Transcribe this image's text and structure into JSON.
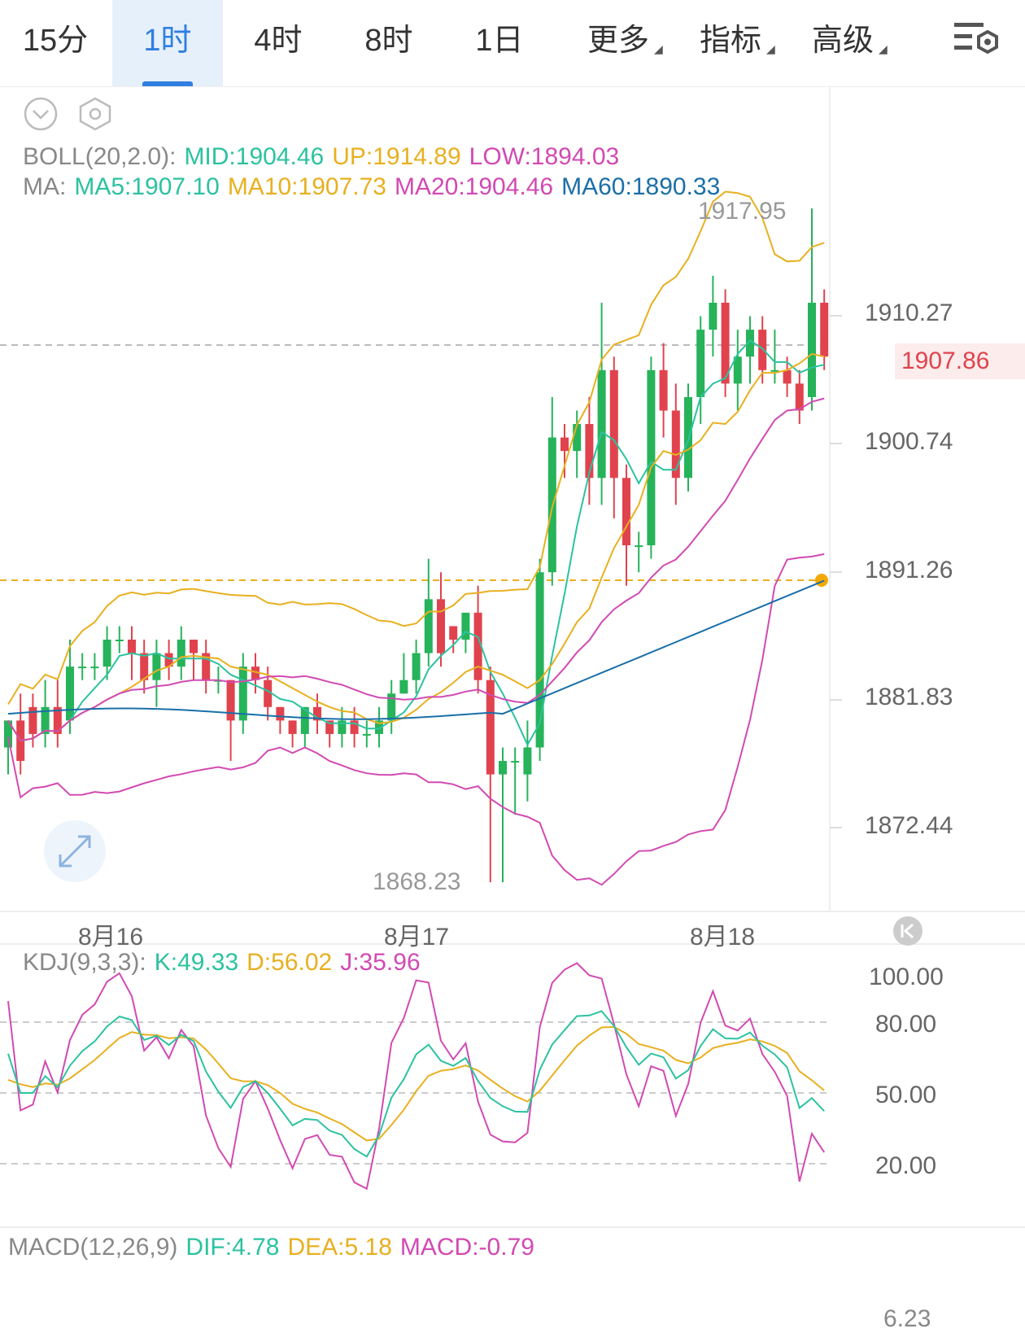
{
  "tabs": [
    {
      "label": "15分",
      "active": false
    },
    {
      "label": "1时",
      "active": true
    },
    {
      "label": "4时",
      "active": false
    },
    {
      "label": "8时",
      "active": false
    },
    {
      "label": "1日",
      "active": false
    },
    {
      "label": "更多",
      "active": false,
      "dropdown": true
    },
    {
      "label": "指标",
      "active": false,
      "dropdown": true
    },
    {
      "label": "高级",
      "active": false,
      "dropdown": true
    }
  ],
  "toolbar": {
    "settings_icon": "chart-settings-icon",
    "collapse_icon": "chevron-down-circle-icon",
    "hex_icon": "hexagon-settings-icon",
    "expand_icon": "expand-arrows-icon",
    "back_icon": "skip-to-start-icon"
  },
  "colors": {
    "up": "#26b35a",
    "down": "#e0434d",
    "mid": "#2cc2a0",
    "upper": "#e8b020",
    "lower": "#d24ab2",
    "ma60": "#1a6fa8",
    "accent": "#2f7fe0"
  },
  "boll": {
    "prefix": "BOLL(20,2.0):",
    "mid": "MID:1904.46",
    "up": "UP:1914.89",
    "low": "LOW:1894.03"
  },
  "ma": {
    "prefix": "MA:",
    "ma5": "MA5:1907.10",
    "ma10": "MA10:1907.73",
    "ma20": "MA20:1904.46",
    "ma60": "MA60:1890.33"
  },
  "price_axis": [
    "1910.27",
    "1900.74",
    "1891.26",
    "1881.83",
    "1872.44"
  ],
  "current_price": "1907.86",
  "high_label": "1917.95",
  "low_label": "1868.23",
  "dates": [
    "8月16",
    "8月17",
    "8月18"
  ],
  "kdj": {
    "prefix": "KDJ(9,3,3):",
    "k": "K:49.33",
    "d": "D:56.02",
    "j": "J:35.96",
    "axis": [
      "100.00",
      "80.00",
      "50.00",
      "20.00"
    ]
  },
  "macd": {
    "prefix": "MACD(12,26,9)",
    "dif": "DIF:4.78",
    "dea": "DEA:5.18",
    "macd": "MACD:-0.79",
    "axis_top": "6.23"
  },
  "chart_data": {
    "type": "candlestick",
    "price_range": [
      1866,
      1920
    ],
    "candles": [
      [
        1878,
        1880,
        1880,
        1876
      ],
      [
        1880,
        1877,
        1882,
        1876
      ],
      [
        1881,
        1879,
        1882,
        1878
      ],
      [
        1879,
        1881,
        1883,
        1878
      ],
      [
        1881,
        1879,
        1883,
        1878
      ],
      [
        1880,
        1884,
        1886,
        1879
      ],
      [
        1884,
        1884,
        1885,
        1883
      ],
      [
        1884,
        1884,
        1885,
        1883
      ],
      [
        1884,
        1886,
        1887,
        1883
      ],
      [
        1886,
        1886,
        1887,
        1885
      ],
      [
        1886,
        1885,
        1887,
        1883
      ],
      [
        1885,
        1883,
        1886,
        1882
      ],
      [
        1883,
        1885,
        1886,
        1881
      ],
      [
        1885,
        1884,
        1886,
        1883
      ],
      [
        1884,
        1886,
        1887,
        1883
      ],
      [
        1886,
        1885,
        1886,
        1883
      ],
      [
        1885,
        1883,
        1886,
        1882
      ],
      [
        1883,
        1883,
        1884,
        1882
      ],
      [
        1883,
        1880,
        1883,
        1877
      ],
      [
        1880,
        1884,
        1885,
        1879
      ],
      [
        1884,
        1883,
        1885,
        1882
      ],
      [
        1883,
        1881,
        1884,
        1880
      ],
      [
        1881,
        1880,
        1881,
        1879
      ],
      [
        1880,
        1879,
        1880,
        1878
      ],
      [
        1879,
        1881,
        1881,
        1878
      ],
      [
        1881,
        1880,
        1882,
        1879
      ],
      [
        1880,
        1879,
        1880,
        1878
      ],
      [
        1879,
        1880,
        1881,
        1878
      ],
      [
        1880,
        1879,
        1881,
        1878
      ],
      [
        1879,
        1879,
        1880,
        1878
      ],
      [
        1879,
        1880,
        1881,
        1878
      ],
      [
        1880,
        1882,
        1883,
        1879
      ],
      [
        1882,
        1883,
        1885,
        1882
      ],
      [
        1883,
        1885,
        1886,
        1882
      ],
      [
        1885,
        1889,
        1892,
        1884
      ],
      [
        1889,
        1885,
        1891,
        1884
      ],
      [
        1887,
        1886,
        1887,
        1885
      ],
      [
        1886,
        1888,
        1888,
        1885
      ],
      [
        1888,
        1883,
        1890,
        1882
      ],
      [
        1883,
        1876,
        1884,
        1868
      ],
      [
        1876,
        1877,
        1878,
        1868
      ],
      [
        1877,
        1877,
        1878,
        1873
      ],
      [
        1876,
        1878,
        1880,
        1874
      ],
      [
        1878,
        1891,
        1892,
        1877
      ],
      [
        1891,
        1901,
        1904,
        1890
      ],
      [
        1901,
        1900,
        1902,
        1898
      ],
      [
        1900,
        1902,
        1903,
        1898
      ],
      [
        1902,
        1898,
        1904,
        1896
      ],
      [
        1898,
        1906,
        1911,
        1896
      ],
      [
        1906,
        1898,
        1907,
        1895
      ],
      [
        1898,
        1893,
        1899,
        1890
      ],
      [
        1893,
        1893,
        1894,
        1891
      ],
      [
        1893,
        1906,
        1907,
        1892
      ],
      [
        1906,
        1903,
        1908,
        1901
      ],
      [
        1903,
        1898,
        1905,
        1896
      ],
      [
        1898,
        1904,
        1905,
        1897
      ],
      [
        1904,
        1909,
        1910,
        1902
      ],
      [
        1909,
        1911,
        1913,
        1907
      ],
      [
        1911,
        1905,
        1912,
        1904
      ],
      [
        1905,
        1907,
        1909,
        1903
      ],
      [
        1907,
        1909,
        1910,
        1905
      ],
      [
        1909,
        1906,
        1910,
        1905
      ],
      [
        1906,
        1906,
        1909,
        1905
      ],
      [
        1906,
        1905,
        1907,
        1904
      ],
      [
        1905,
        1903,
        1906,
        1902
      ],
      [
        1904,
        1911,
        1918,
        1903
      ],
      [
        1911,
        1907,
        1912,
        1906
      ]
    ]
  }
}
